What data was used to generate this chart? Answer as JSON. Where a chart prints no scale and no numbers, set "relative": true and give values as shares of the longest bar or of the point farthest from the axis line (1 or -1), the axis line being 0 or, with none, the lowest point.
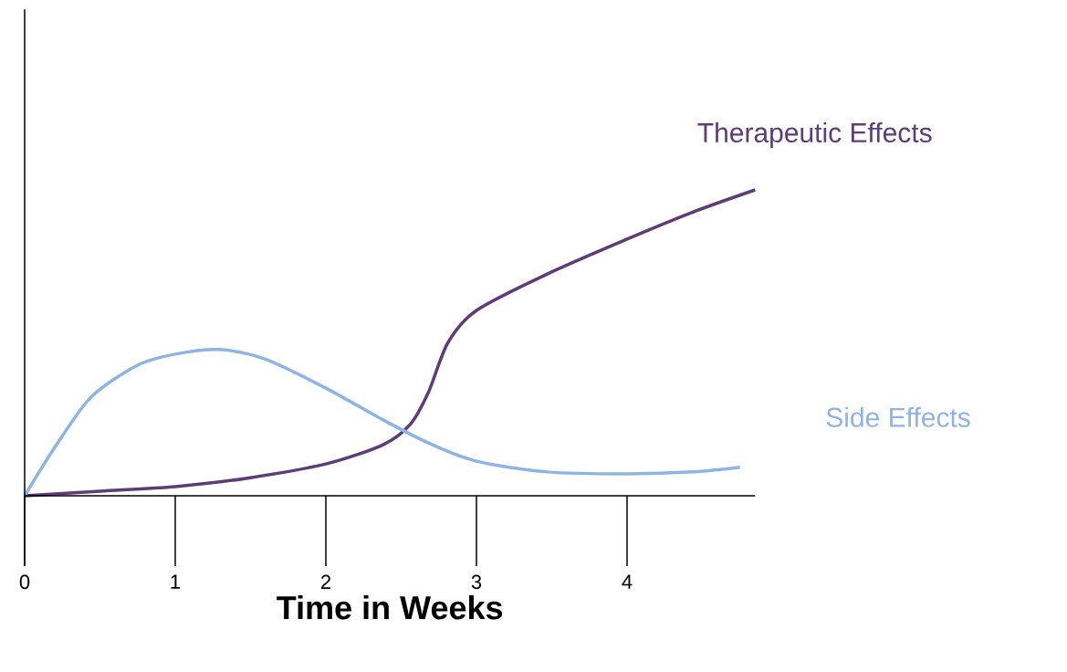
{
  "chart_data": {
    "type": "line",
    "xlabel": "Time in Weeks",
    "relative": true,
    "xlim": [
      0,
      4.85
    ],
    "xticks": [
      0,
      1,
      2,
      3,
      4
    ],
    "grid": false,
    "legend": false,
    "marker": "none",
    "line_style": "solid",
    "series": [
      {
        "name": "Therapeutic Effects",
        "color": "#5e3c78",
        "x": [
          0,
          0.5,
          1,
          1.47,
          2,
          2.38,
          2.56,
          2.68,
          2.81,
          3,
          3.47,
          4,
          4.44,
          4.85
        ],
        "values": [
          0,
          0.015,
          0.03,
          0.057,
          0.104,
          0.167,
          0.233,
          0.337,
          0.5,
          0.606,
          0.725,
          0.839,
          0.928,
          1.0
        ]
      },
      {
        "name": "Side Effects",
        "color": "#8db4e2",
        "x": [
          0,
          0.2,
          0.44,
          0.75,
          1,
          1.29,
          1.59,
          2,
          2.38,
          2.68,
          3,
          3.47,
          4,
          4.44,
          4.75
        ],
        "values": [
          0,
          0.158,
          0.322,
          0.427,
          0.463,
          0.478,
          0.448,
          0.352,
          0.248,
          0.173,
          0.113,
          0.078,
          0.072,
          0.078,
          0.093
        ]
      }
    ]
  }
}
